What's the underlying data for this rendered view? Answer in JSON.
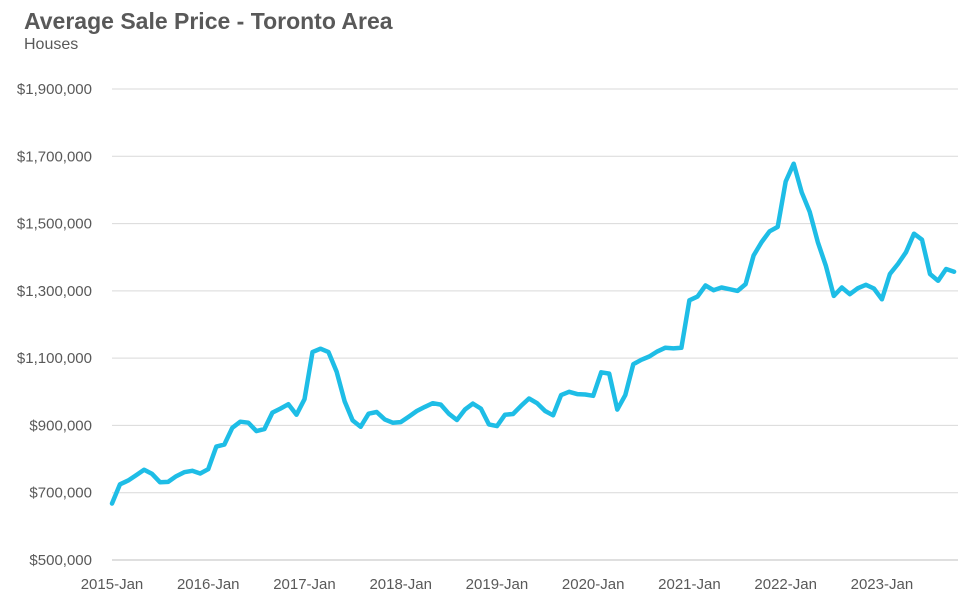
{
  "chart_data": {
    "type": "line",
    "title": "Average Sale Price - Toronto Area",
    "subtitle": "Houses",
    "xlabel": "",
    "ylabel": "",
    "ylim": [
      500000,
      1900000
    ],
    "yticks": [
      500000,
      700000,
      900000,
      1100000,
      1300000,
      1500000,
      1700000,
      1900000
    ],
    "ytick_labels": [
      "$500,000",
      "$700,000",
      "$900,000",
      "$1,100,000",
      "$1,300,000",
      "$1,500,000",
      "$1,700,000",
      "$1,900,000"
    ],
    "xtick_labels": [
      "2015-Jan",
      "2016-Jan",
      "2017-Jan",
      "2018-Jan",
      "2019-Jan",
      "2020-Jan",
      "2021-Jan",
      "2022-Jan",
      "2023-Jan"
    ],
    "start": "2015-01",
    "grid": true,
    "line_color": "#1ebde6",
    "series": [
      {
        "values": [
          668000,
          725000,
          736000,
          752000,
          768000,
          756000,
          731000,
          732000,
          749000,
          761000,
          765000,
          757000,
          770000,
          837000,
          843000,
          893000,
          911000,
          908000,
          883000,
          889000,
          938000,
          950000,
          963000,
          932000,
          978000,
          1118000,
          1128000,
          1118000,
          1060000,
          972000,
          915000,
          896000,
          935000,
          940000,
          918000,
          908000,
          910000,
          926000,
          943000,
          955000,
          966000,
          962000,
          935000,
          916000,
          947000,
          965000,
          950000,
          903000,
          898000,
          932000,
          934000,
          958000,
          980000,
          966000,
          943000,
          930000,
          990000,
          1000000,
          993000,
          992000,
          988000,
          1058000,
          1054000,
          947000,
          990000,
          1082000,
          1095000,
          1105000,
          1120000,
          1131000,
          1129000,
          1131000,
          1272000,
          1283000,
          1316000,
          1302000,
          1310000,
          1305000,
          1300000,
          1320000,
          1405000,
          1445000,
          1477000,
          1490000,
          1625000,
          1678000,
          1593000,
          1535000,
          1445000,
          1375000,
          1285000,
          1310000,
          1290000,
          1308000,
          1318000,
          1307000,
          1275000,
          1350000,
          1380000,
          1415000,
          1470000,
          1452000,
          1350000,
          1330000,
          1365000,
          1357000
        ]
      }
    ]
  }
}
